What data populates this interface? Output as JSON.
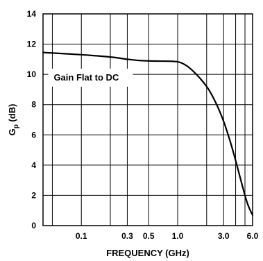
{
  "chart_data": {
    "type": "line",
    "title": "",
    "xlabel": "FREQUENCY (GHz)",
    "ylabel": {
      "main": "G",
      "sub": "p",
      "unit": " (dB)"
    },
    "xscale": "log",
    "xlim": [
      0.04,
      6.0
    ],
    "ylim": [
      0,
      14
    ],
    "grid": true,
    "xticks": [
      {
        "value": 0.1,
        "label": "0.1"
      },
      {
        "value": 0.3,
        "label": "0.3"
      },
      {
        "value": 0.5,
        "label": "0.5"
      },
      {
        "value": 1.0,
        "label": "1.0"
      },
      {
        "value": 3.0,
        "label": "3.0"
      },
      {
        "value": 6.0,
        "label": "6.0"
      }
    ],
    "xgrid": [
      0.05,
      0.1,
      0.2,
      0.3,
      0.5,
      1.0,
      2.0,
      3.0,
      4.0,
      5.0,
      6.0
    ],
    "yticks": [
      0,
      2,
      4,
      6,
      8,
      10,
      12,
      14
    ],
    "annotation": {
      "text": "Gain Flat to DC",
      "x": 0.05,
      "y": 9.6
    },
    "series": [
      {
        "name": "",
        "color": "#000000",
        "x": [
          0.04,
          0.1,
          0.2,
          0.3,
          0.4,
          0.6,
          0.9,
          1.1,
          1.4,
          2.0,
          2.5,
          3.0,
          3.5,
          4.0,
          5.0,
          5.5,
          6.0
        ],
        "y": [
          11.45,
          11.3,
          11.15,
          11.0,
          10.92,
          10.88,
          10.86,
          10.75,
          10.3,
          9.2,
          8.1,
          6.9,
          5.6,
          4.3,
          2.0,
          1.2,
          0.7
        ]
      }
    ]
  }
}
